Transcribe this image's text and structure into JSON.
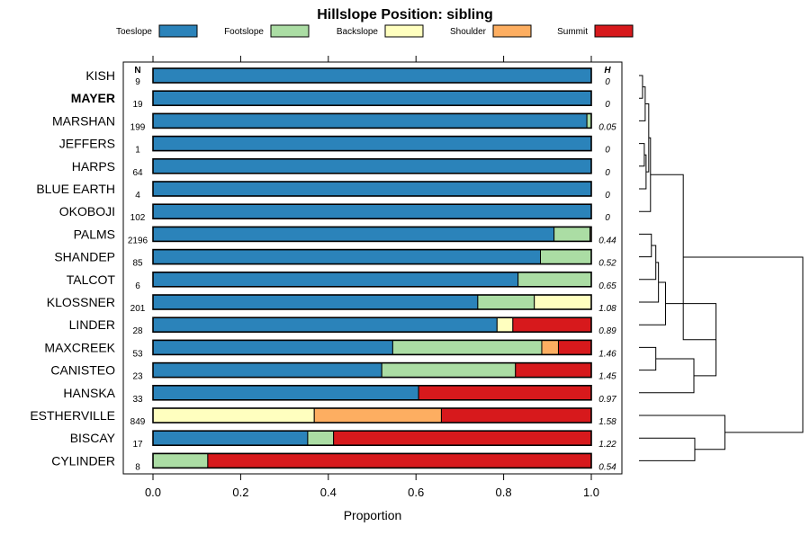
{
  "chart_data": {
    "type": "bar",
    "stacked": true,
    "orientation": "horizontal",
    "title": "Hillslope Position: sibling",
    "xlabel": "Proportion",
    "ylabel": "",
    "xlim": [
      0,
      1
    ],
    "x_ticks": [
      "0.0",
      "0.2",
      "0.4",
      "0.6",
      "0.8",
      "1.0"
    ],
    "n_header": "N",
    "h_header": "H",
    "legend_position": "top",
    "legend": [
      {
        "name": "Toeslope",
        "color": "#2b83ba"
      },
      {
        "name": "Footslope",
        "color": "#abdda4"
      },
      {
        "name": "Backslope",
        "color": "#ffffbf"
      },
      {
        "name": "Shoulder",
        "color": "#fdae61"
      },
      {
        "name": "Summit",
        "color": "#d7191c"
      }
    ],
    "categories": [
      "KISH",
      "MAYER",
      "MARSHAN",
      "JEFFERS",
      "HARPS",
      "BLUE EARTH",
      "OKOBOJI",
      "PALMS",
      "SHANDEP",
      "TALCOT",
      "KLOSSNER",
      "LINDER",
      "MAXCREEK",
      "CANISTEO",
      "HANSKA",
      "ESTHERVILLE",
      "BISCAY",
      "CYLINDER"
    ],
    "highlighted": "MAYER",
    "n": [
      "9",
      "19",
      "199",
      "1",
      "64",
      "4",
      "102",
      "2196",
      "85",
      "6",
      "201",
      "28",
      "53",
      "23",
      "33",
      "849",
      "17",
      "8"
    ],
    "h": [
      "0",
      "0",
      "0.05",
      "0",
      "0",
      "0",
      "0",
      "0.44",
      "0.52",
      "0.65",
      "1.08",
      "0.89",
      "1.46",
      "1.45",
      "0.97",
      "1.58",
      "1.22",
      "0.54"
    ],
    "series": [
      {
        "name": "Toeslope",
        "values": [
          1.0,
          1.0,
          0.99,
          1.0,
          1.0,
          1.0,
          1.0,
          0.915,
          0.884,
          0.833,
          0.741,
          0.785,
          0.547,
          0.522,
          0.606,
          0.0,
          0.353,
          0.0
        ]
      },
      {
        "name": "Footslope",
        "values": [
          0,
          0,
          0.01,
          0,
          0,
          0,
          0,
          0.082,
          0.116,
          0.167,
          0.129,
          0.0,
          0.34,
          0.305,
          0.0,
          0.0,
          0.059,
          0.125
        ]
      },
      {
        "name": "Backslope",
        "values": [
          0,
          0,
          0,
          0,
          0,
          0,
          0,
          0.003,
          0.0,
          0.0,
          0.13,
          0.036,
          0.0,
          0.0,
          0.0,
          0.368,
          0.0,
          0.0
        ]
      },
      {
        "name": "Shoulder",
        "values": [
          0,
          0,
          0,
          0,
          0,
          0,
          0,
          0,
          0,
          0,
          0,
          0,
          0.038,
          0.0,
          0.0,
          0.29,
          0.0,
          0.0
        ]
      },
      {
        "name": "Summit",
        "values": [
          0,
          0,
          0,
          0,
          0,
          0,
          0,
          0,
          0,
          0,
          0,
          0.179,
          0.075,
          0.173,
          0.394,
          0.342,
          0.588,
          0.875
        ]
      }
    ],
    "dendrogram": {
      "method": "hierarchical clustering of rows",
      "merges": [
        [
          0,
          1,
          0.04
        ],
        [
          3,
          4,
          0.06
        ],
        [
          18,
          2,
          0.07
        ],
        [
          19,
          5,
          0.08
        ],
        [
          20,
          21,
          0.11
        ],
        [
          22,
          6,
          0.13
        ],
        [
          7,
          8,
          0.14
        ],
        [
          24,
          9,
          0.19
        ],
        [
          25,
          10,
          0.22
        ],
        [
          26,
          11,
          0.3
        ],
        [
          12,
          13,
          0.19
        ],
        [
          28,
          14,
          0.62
        ],
        [
          27,
          29,
          0.87
        ],
        [
          23,
          30,
          0.5
        ],
        [
          16,
          17,
          0.63
        ],
        [
          15,
          32,
          0.97
        ],
        [
          31,
          33,
          1.85
        ]
      ]
    }
  }
}
